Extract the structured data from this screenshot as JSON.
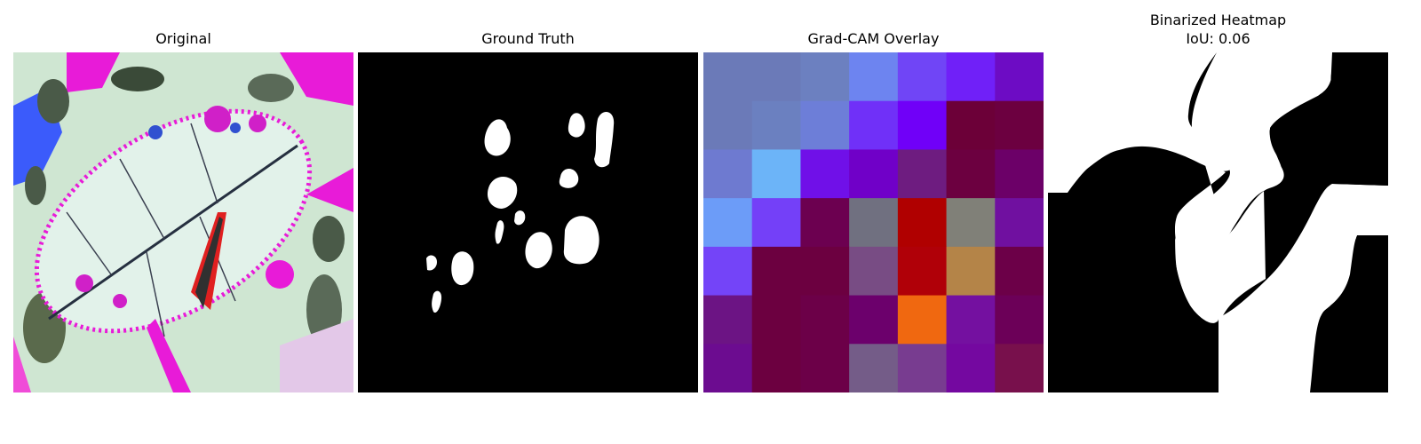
{
  "panels": [
    {
      "id": "original",
      "title": "Original"
    },
    {
      "id": "ground-truth",
      "title": "Ground Truth"
    },
    {
      "id": "gradcam",
      "title": "Grad-CAM Overlay"
    },
    {
      "id": "binarized",
      "title": "Binarized Heatmap",
      "subtitle": "IoU: 0.06"
    }
  ],
  "gradcam_grid": {
    "rows": 7,
    "cols": 7,
    "colors": [
      [
        "#6b7ab8",
        "#6b7ab8",
        "#6c80c0",
        "#6d84f0",
        "#7045f6",
        "#7020f8",
        "#6d0cc4"
      ],
      [
        "#6b7ab8",
        "#6b80c0",
        "#6d7ed8",
        "#7030f8",
        "#7000f8",
        "#6c0038",
        "#6c0040"
      ],
      [
        "#6e7ad0",
        "#6cb4f8",
        "#7010e8",
        "#7000c8",
        "#6e1c80",
        "#6c0040",
        "#6c0068"
      ],
      [
        "#6c9cf8",
        "#7440f8",
        "#6c0050",
        "#707080",
        "#b00000",
        "#808078",
        "#7010a0"
      ],
      [
        "#7444f8",
        "#6c0040",
        "#6c0040",
        "#784c84",
        "#b00008",
        "#b48448",
        "#6c0048"
      ],
      [
        "#6c1484",
        "#6c0040",
        "#6c0048",
        "#6c006c",
        "#f06810",
        "#7410a0",
        "#6c0058"
      ],
      [
        "#6c0c90",
        "#6c0040",
        "#6c0048",
        "#745c88",
        "#783c90",
        "#7408a0",
        "#78104c"
      ]
    ]
  }
}
